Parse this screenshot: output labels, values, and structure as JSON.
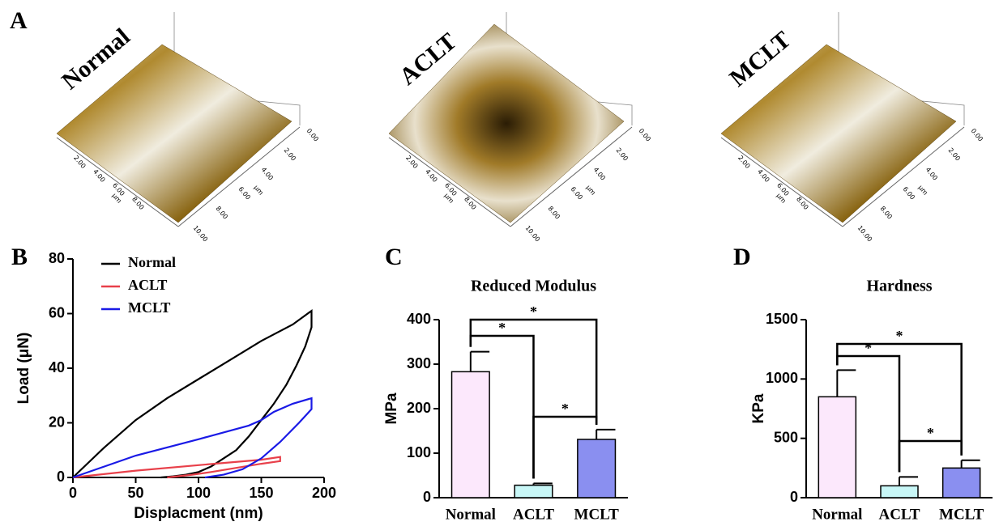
{
  "afm": {
    "panel": "A",
    "unit": "µm",
    "images": [
      {
        "label": "Normal",
        "ticks": [
          "0.00",
          "2.00",
          "4.00",
          "6.00",
          "8.00",
          "10.00"
        ]
      },
      {
        "label": "ACLT",
        "ticks": [
          "0.00",
          "2.00",
          "4.00",
          "6.00",
          "8.00",
          "10.00"
        ]
      },
      {
        "label": "MCLT",
        "ticks": [
          "0.00",
          "2.00",
          "4.00",
          "6.00",
          "8.00",
          "10.00"
        ]
      }
    ]
  },
  "chart_data": [
    {
      "type": "line",
      "panel": "B",
      "x_label": "Displacment (nm)",
      "y_label": "Load (μN)",
      "xlim": [
        0,
        200
      ],
      "xticks": [
        0,
        50,
        100,
        150,
        200
      ],
      "ylim": [
        0,
        80
      ],
      "yticks": [
        0,
        20,
        40,
        60,
        80
      ],
      "legend": "upper left",
      "series": [
        {
          "name": "Normal",
          "color": "#000000",
          "x": [
            0,
            25,
            50,
            75,
            100,
            125,
            150,
            175,
            190,
            190,
            185,
            178,
            170,
            160,
            150,
            140,
            130,
            120,
            110,
            100,
            90,
            80,
            70
          ],
          "values": [
            0,
            11,
            21,
            29,
            36,
            43,
            50,
            56,
            61,
            55,
            48,
            41,
            34,
            27,
            21,
            15,
            10,
            7,
            4,
            2,
            1,
            0.4,
            0
          ]
        },
        {
          "name": "ACLT",
          "color": "#e8404a",
          "x": [
            0,
            50,
            100,
            150,
            165,
            165,
            150,
            130,
            110,
            95,
            75
          ],
          "values": [
            0,
            2.5,
            4.5,
            6.5,
            7.5,
            6,
            5,
            3.5,
            2,
            1,
            0
          ]
        },
        {
          "name": "MCLT",
          "color": "#1a1ae6",
          "x": [
            0,
            50,
            100,
            140,
            150,
            160,
            175,
            190,
            190,
            180,
            165,
            150,
            135,
            120,
            105
          ],
          "values": [
            0,
            8,
            14,
            19,
            21,
            24,
            27,
            29,
            25,
            20,
            13,
            7,
            3,
            1,
            0
          ]
        }
      ]
    },
    {
      "type": "bar",
      "panel": "C",
      "title": "Reduced Modulus",
      "y_label": "MPa",
      "categories": [
        "Normal",
        "ACLT",
        "MCLT"
      ],
      "values": [
        283,
        28,
        131
      ],
      "errors": [
        45,
        4,
        22
      ],
      "colors": [
        "#fce8fc",
        "#c8f7f7",
        "#8a8ff0"
      ],
      "ylim": [
        0,
        400
      ],
      "yticks": [
        0,
        100,
        200,
        300,
        400
      ],
      "significance": [
        {
          "from": 0,
          "to": 1,
          "label": "*"
        },
        {
          "from": 0,
          "to": 2,
          "label": "*"
        },
        {
          "from": 1,
          "to": 2,
          "label": "*"
        }
      ]
    },
    {
      "type": "bar",
      "panel": "D",
      "title": "Hardness",
      "y_label": "KPa",
      "categories": [
        "Normal",
        "ACLT",
        "MCLT"
      ],
      "values": [
        850,
        100,
        250
      ],
      "errors": [
        225,
        75,
        65
      ],
      "colors": [
        "#fce8fc",
        "#c8f7f7",
        "#8a8ff0"
      ],
      "ylim": [
        0,
        1500
      ],
      "yticks": [
        0,
        500,
        1000,
        1500
      ],
      "significance": [
        {
          "from": 0,
          "to": 1,
          "label": "*"
        },
        {
          "from": 0,
          "to": 2,
          "label": "*"
        },
        {
          "from": 1,
          "to": 2,
          "label": "*"
        }
      ]
    }
  ]
}
